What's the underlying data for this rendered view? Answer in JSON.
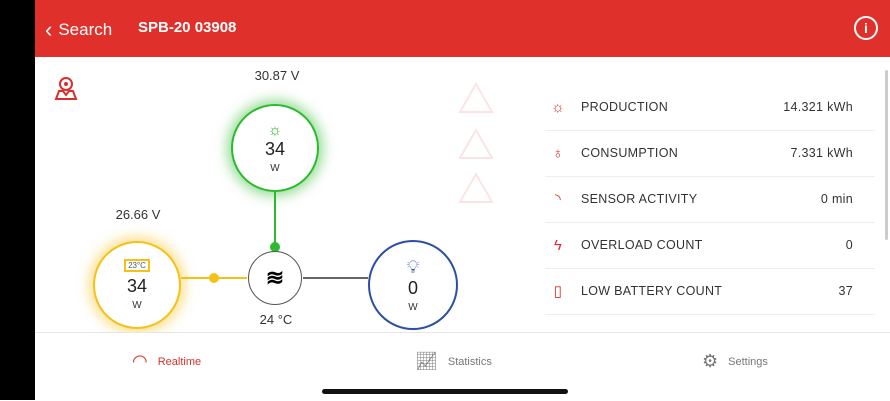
{
  "header": {
    "back_label": "Search",
    "title": "SPB-20 03908"
  },
  "diagram": {
    "solar": {
      "voltage": "30.87 V",
      "power": "34",
      "unit": "W",
      "color": "#2dbb2d"
    },
    "battery": {
      "voltage": "26.66 V",
      "temp": "23°C",
      "power": "34",
      "unit": "W",
      "color": "#f5c116"
    },
    "inverter": {
      "temp": "24 °C"
    },
    "load": {
      "power": "0",
      "unit": "W",
      "color": "#2c4fa0"
    }
  },
  "stats": [
    {
      "icon": "sun-icon",
      "label": "PRODUCTION",
      "value": "14.321 kWh"
    },
    {
      "icon": "bulb-icon",
      "label": "CONSUMPTION",
      "value": "7.331 kWh"
    },
    {
      "icon": "signal-icon",
      "label": "SENSOR ACTIVITY",
      "value": "0 min"
    },
    {
      "icon": "bolt-icon",
      "label": "OVERLOAD COUNT",
      "value": "0"
    },
    {
      "icon": "battery-icon",
      "label": "LOW BATTERY COUNT",
      "value": "37"
    }
  ],
  "tabs": [
    {
      "label": "Realtime",
      "active": true
    },
    {
      "label": "Statistics"
    },
    {
      "label": "Settings"
    }
  ],
  "colors": {
    "brand": "#e0302b"
  }
}
